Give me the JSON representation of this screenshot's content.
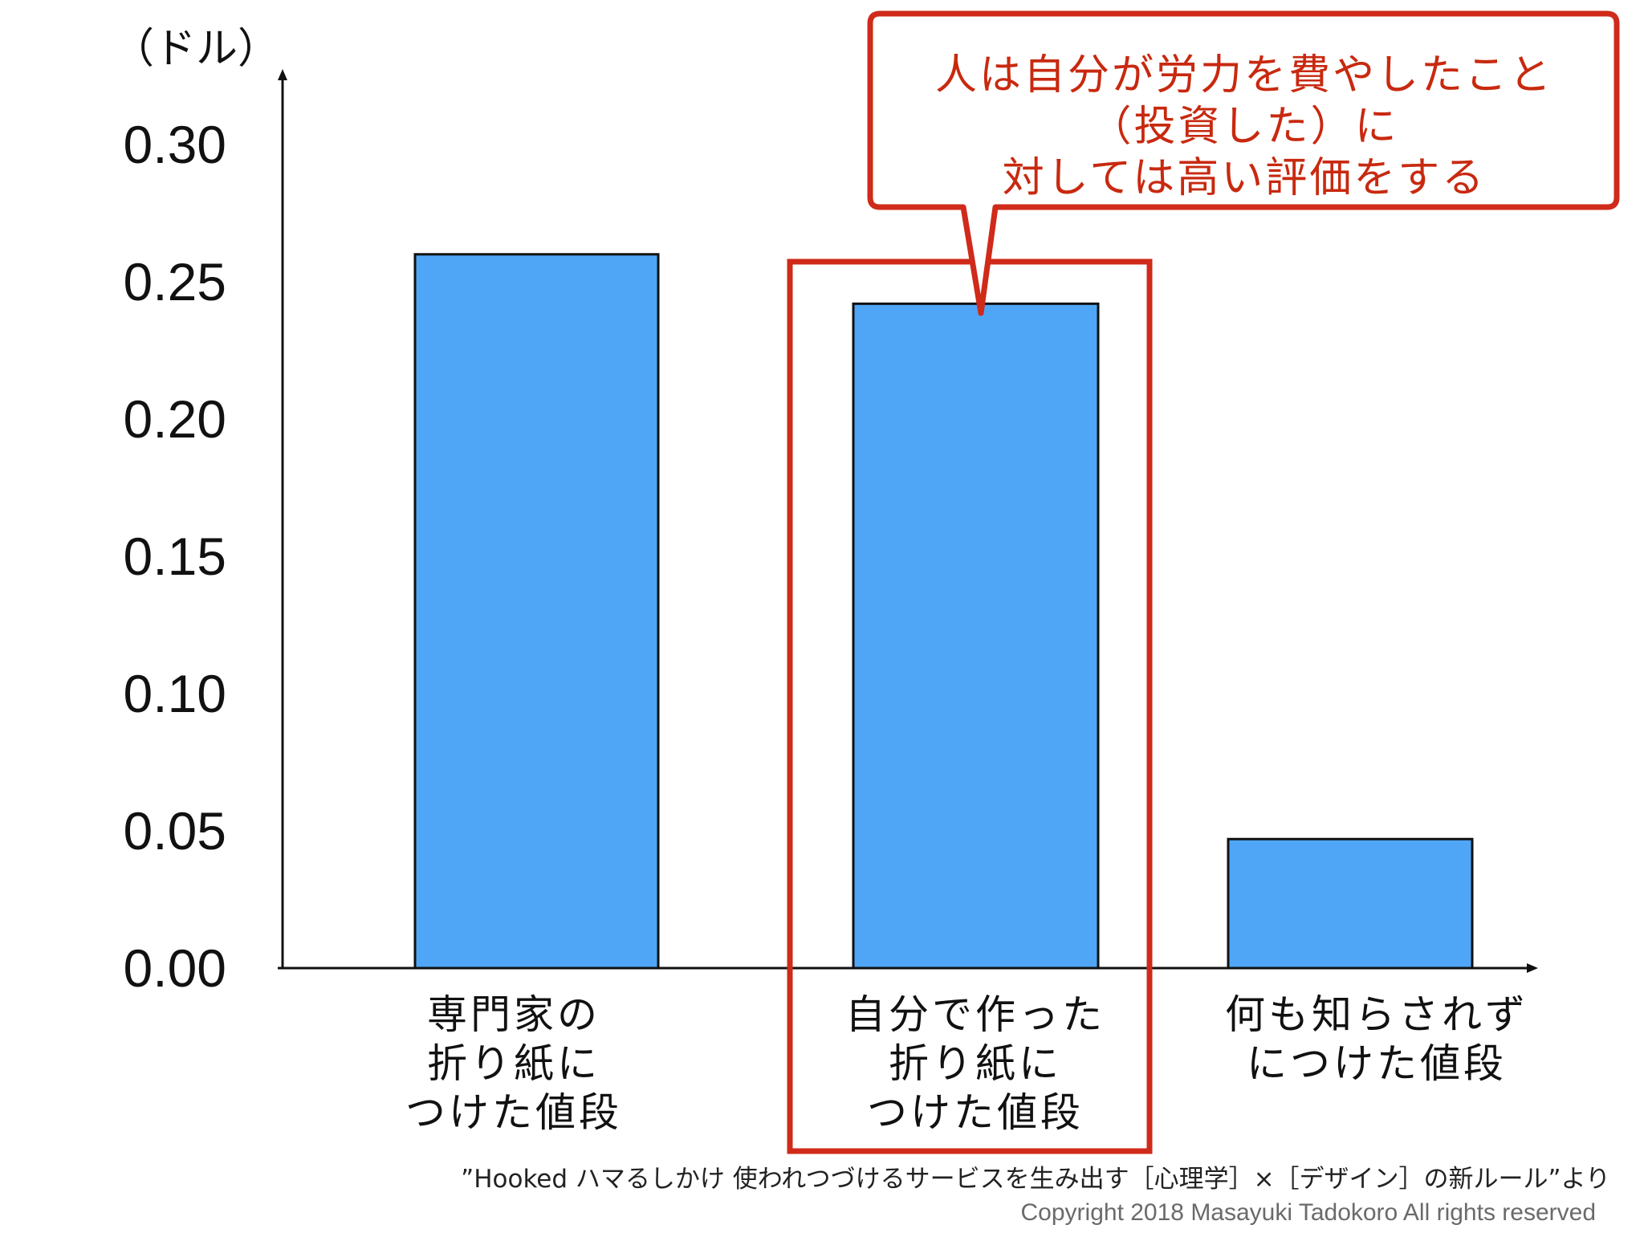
{
  "chart_data": {
    "type": "bar",
    "unit_label": "（ドル）",
    "categories": [
      "専門家の\n折り紙に\nつけた値段",
      "自分で作った\n折り紙に\nつけた値段",
      "何も知らされず\nにつけた値段"
    ],
    "values": [
      0.26,
      0.242,
      0.047
    ],
    "ylim": [
      0,
      0.3
    ],
    "yticks": [
      "0.00",
      "0.05",
      "0.10",
      "0.15",
      "0.20",
      "0.25",
      "0.30"
    ],
    "highlighted_category_index": 1,
    "bar_color": "#4fa6f7",
    "highlight_color": "#cf2a1a"
  },
  "callout": {
    "text": "人は自分が労力を費やしたこと\n（投資した）に\n対しては高い評価をする",
    "border_color": "#cf2a1a"
  },
  "footer": {
    "source": "”Hooked ハマるしかけ 使われつづけるサービスを生み出す［心理学］×［デザイン］の新ルール”より",
    "copyright": "Copyright 2018 Masayuki Tadokoro All rights reserved"
  }
}
